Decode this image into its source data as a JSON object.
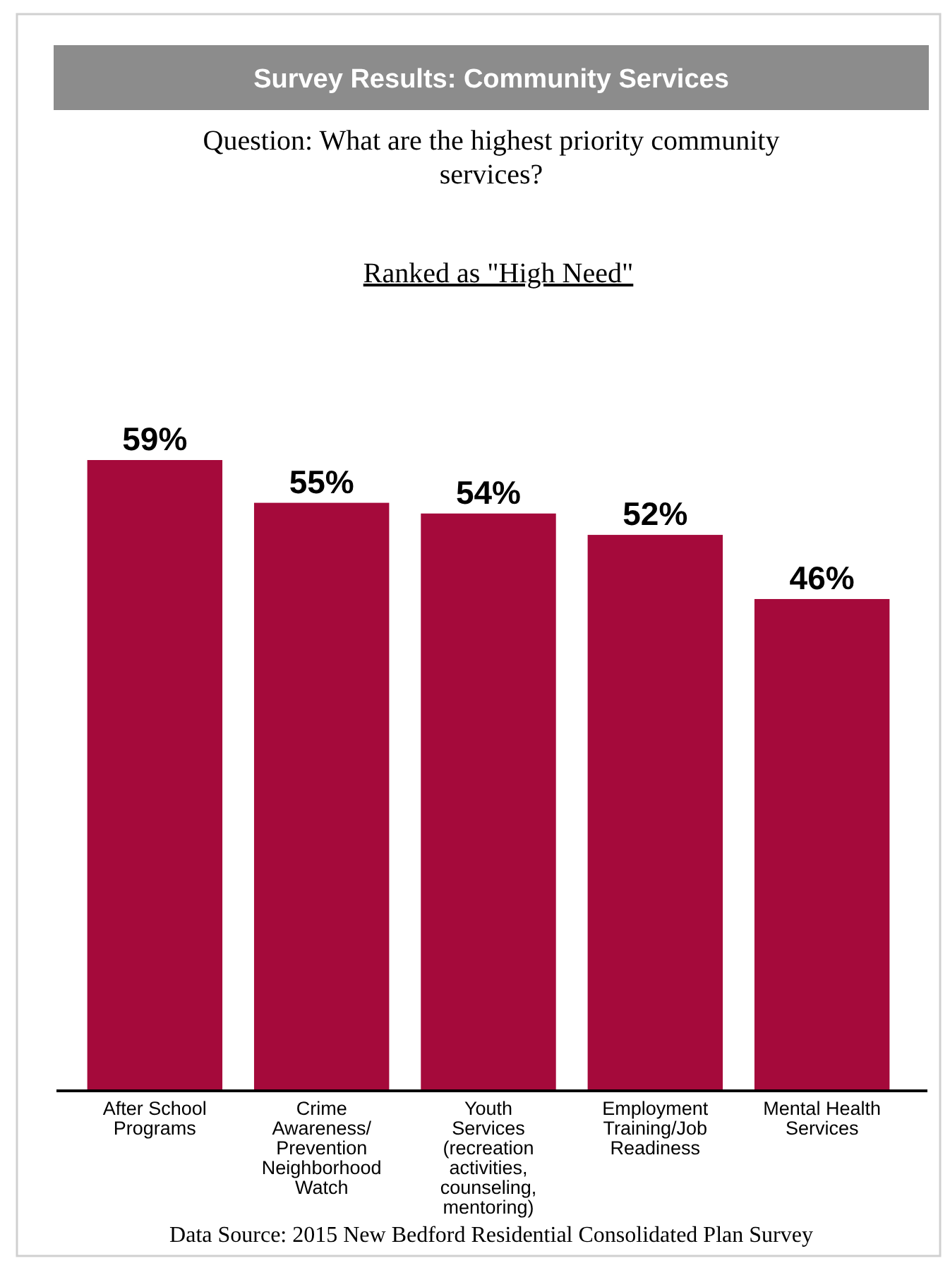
{
  "chart_data": {
    "type": "bar",
    "title": "Survey Results: Community Services",
    "subtitle": "Question: What are the highest priority community services?",
    "annotations": [
      "Ranked as \"High Need\"",
      "Data Source: 2015 New Bedford Residential Consolidated Plan Survey"
    ],
    "categories": [
      "After School Programs",
      "Crime Awareness/ Prevention Neighborhood Watch",
      "Youth Services (recreation activities, counseling, mentoring)",
      "Employment Training/Job Readiness",
      "Mental Health Services"
    ],
    "values": [
      59,
      55,
      54,
      52,
      46
    ],
    "color": "#a50a3b",
    "data_labels": true,
    "value_labels": [
      "59%",
      "55%",
      "54%",
      "52%",
      "46%"
    ]
  }
}
